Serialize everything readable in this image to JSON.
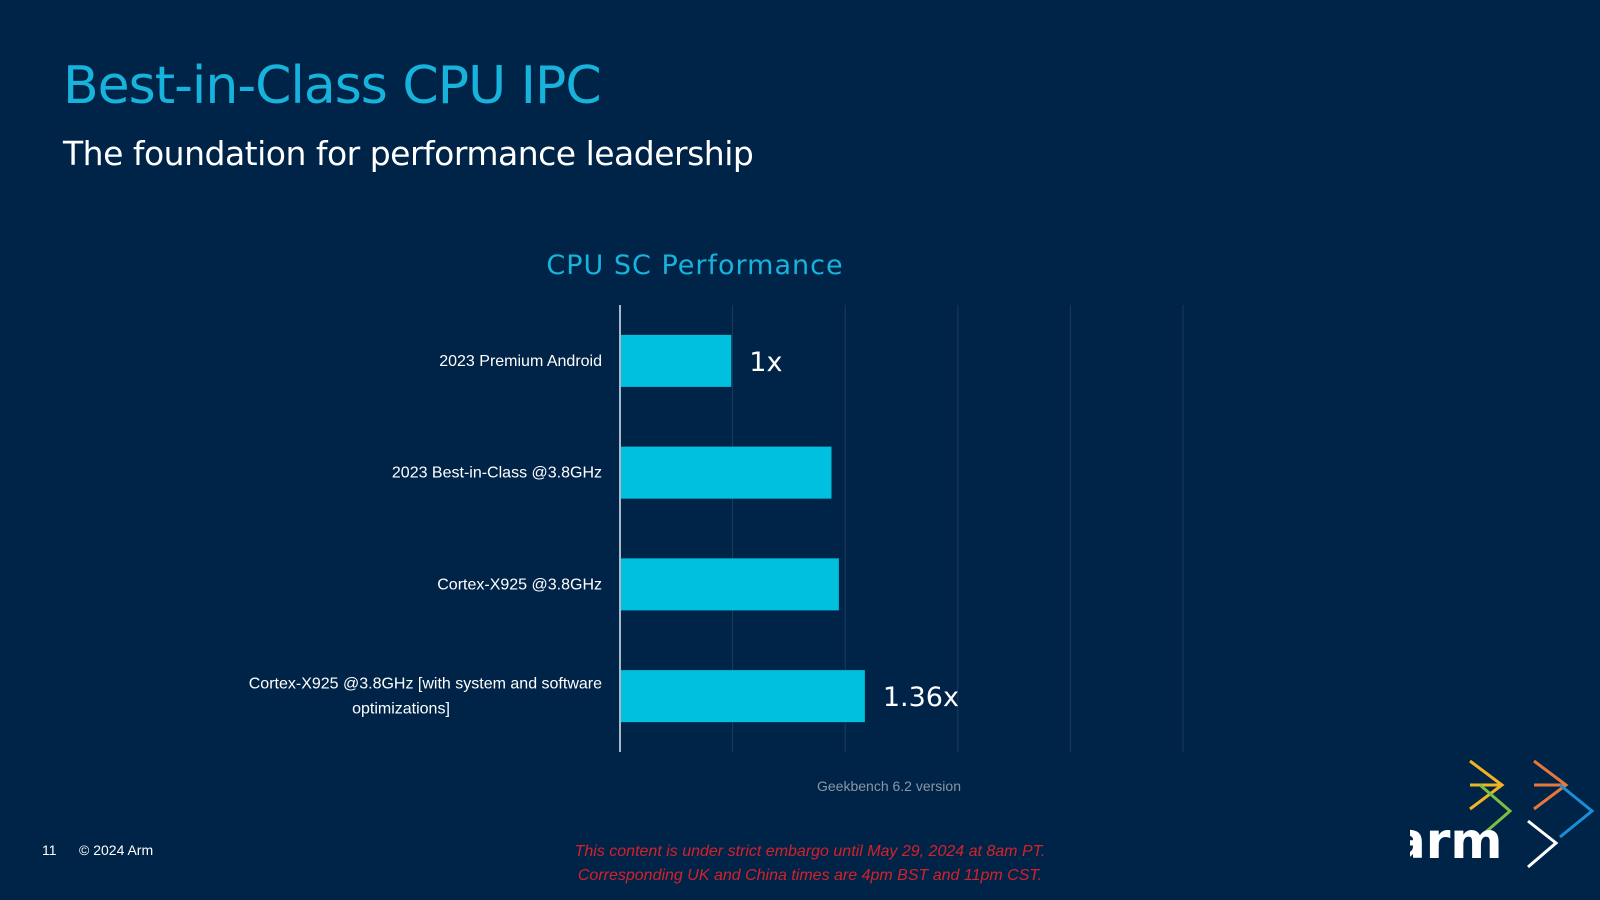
{
  "slide": {
    "title": "Best-in-Class CPU IPC",
    "subtitle": "The foundation for performance leadership",
    "page_number": "11",
    "copyright": "© 2024 Arm",
    "embargo_line1": "This content is under strict embargo until May 29, 2024 at 8am PT.",
    "embargo_line2": "Corresponding UK and China times are 4pm BST and 11pm CST.",
    "logo_text": "arm"
  },
  "colors": {
    "background": "#002448",
    "title": "#17b3dc",
    "bar": "#00c0e0",
    "gridline": "#1c3a5c",
    "axis": "#a8b8c8",
    "embargo": "#d6202a"
  },
  "chart_data": {
    "type": "bar",
    "orientation": "horizontal",
    "title": "CPU SC Performance",
    "categories": [
      [
        "2023 Premium Android"
      ],
      [
        "2023 Best-in-Class @3.8GHz"
      ],
      [
        "Cortex-X925 @3.8GHz"
      ],
      [
        "Cortex-X925 @3.8GHz [with system and software",
        "optimizations]"
      ]
    ],
    "values": [
      1.0,
      1.27,
      1.29,
      1.36
    ],
    "data_labels": [
      "1x",
      "",
      "",
      "1.36x"
    ],
    "xlim": [
      0.7,
      1.5
    ],
    "grid": true,
    "footnote": "Geekbench 6.2 version"
  }
}
